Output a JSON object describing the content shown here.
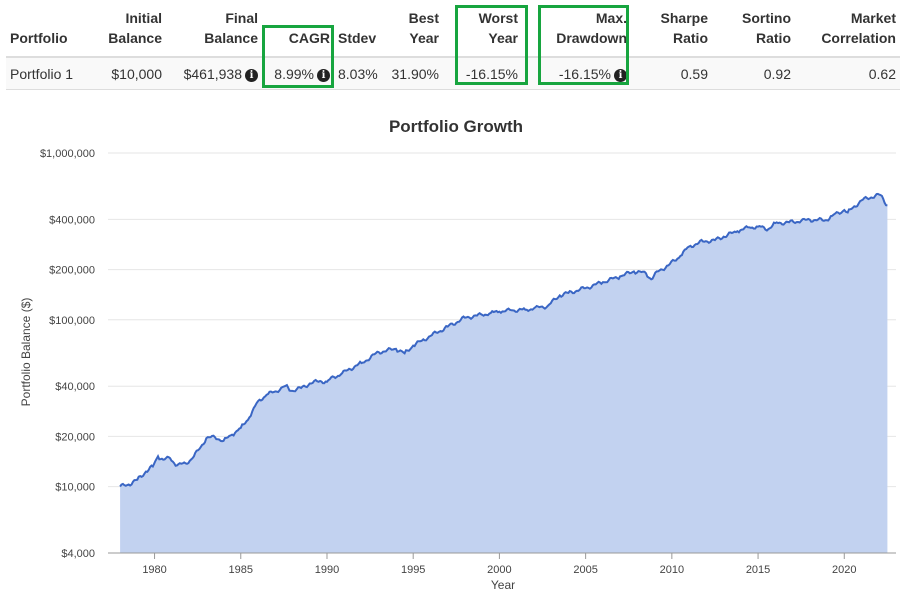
{
  "table": {
    "headers": [
      {
        "l1": "",
        "l2": "Portfolio"
      },
      {
        "l1": "Initial",
        "l2": "Balance"
      },
      {
        "l1": "Final",
        "l2": "Balance"
      },
      {
        "l1": "",
        "l2": "CAGR"
      },
      {
        "l1": "",
        "l2": "Stdev"
      },
      {
        "l1": "Best",
        "l2": "Year"
      },
      {
        "l1": "Worst",
        "l2": "Year"
      },
      {
        "l1": "Max.",
        "l2": "Drawdown"
      },
      {
        "l1": "Sharpe",
        "l2": "Ratio"
      },
      {
        "l1": "Sortino",
        "l2": "Ratio"
      },
      {
        "l1": "Market",
        "l2": "Correlation"
      }
    ],
    "row": {
      "portfolio": "Portfolio 1",
      "initial_balance": "$10,000",
      "final_balance": "$461,938",
      "cagr": "8.99%",
      "stdev": "8.03%",
      "best_year": "31.90%",
      "worst_year": "-16.15%",
      "max_drawdown": "-16.15%",
      "sharpe": "0.59",
      "sortino": "0.92",
      "market_correlation": "0.62"
    },
    "info_glyph": "i",
    "highlight_color": "#17a53f"
  },
  "chart_data": {
    "type": "area",
    "title": "Portfolio Growth",
    "xlabel": "Year",
    "ylabel": "Portfolio Balance ($)",
    "yscale": "log",
    "ylim": [
      4000,
      1000000
    ],
    "xlim": [
      1977.3,
      2023.0
    ],
    "y_ticks": [
      {
        "value": 1000000,
        "label": "$1,000,000"
      },
      {
        "value": 400000,
        "label": "$400,000"
      },
      {
        "value": 200000,
        "label": "$200,000"
      },
      {
        "value": 100000,
        "label": "$100,000"
      },
      {
        "value": 40000,
        "label": "$40,000"
      },
      {
        "value": 20000,
        "label": "$20,000"
      },
      {
        "value": 10000,
        "label": "$10,000"
      },
      {
        "value": 4000,
        "label": "$4,000"
      }
    ],
    "x_ticks": [
      1980,
      1985,
      1990,
      1995,
      2000,
      2005,
      2010,
      2015,
      2020
    ],
    "line_color": "#3a66c4",
    "fill_color": "#c2d2f0",
    "grid": true,
    "series": [
      {
        "name": "Portfolio 1",
        "x": [
          1978.0,
          1978.5,
          1979.0,
          1979.5,
          1979.9,
          1980.2,
          1980.5,
          1980.9,
          1981.3,
          1981.8,
          1982.2,
          1982.6,
          1983.0,
          1983.5,
          1984.0,
          1984.5,
          1985.0,
          1985.5,
          1986.0,
          1986.5,
          1987.0,
          1987.6,
          1987.9,
          1988.5,
          1989.0,
          1989.6,
          1990.0,
          1990.4,
          1990.8,
          1991.2,
          1992.0,
          1993.0,
          1994.0,
          1994.5,
          1995.0,
          1995.5,
          1996.0,
          1997.0,
          1998.0,
          1998.7,
          1999.0,
          1999.5,
          2000.0,
          2000.7,
          2001.5,
          2002.0,
          2002.8,
          2003.5,
          2004.0,
          2005.0,
          2006.0,
          2007.0,
          2007.8,
          2008.5,
          2008.8,
          2009.2,
          2009.8,
          2010.5,
          2011.0,
          2011.8,
          2012.5,
          2013.0,
          2013.8,
          2014.5,
          2015.0,
          2015.6,
          2016.0,
          2016.8,
          2017.5,
          2018.0,
          2018.9,
          2019.3,
          2020.0,
          2020.2,
          2020.5,
          2021.0,
          2021.8,
          2022.1,
          2022.5
        ],
        "y": [
          10000,
          10300,
          11000,
          12300,
          13200,
          15200,
          14500,
          14800,
          13400,
          13800,
          14800,
          16800,
          19500,
          19800,
          18800,
          20500,
          22500,
          26000,
          32500,
          35500,
          37200,
          40200,
          37500,
          39000,
          41500,
          43000,
          42500,
          45500,
          47000,
          50000,
          55000,
          64000,
          67000,
          63000,
          70000,
          75000,
          80000,
          91000,
          103000,
          106000,
          107000,
          110000,
          112000,
          114000,
          115000,
          117000,
          121000,
          140000,
          145000,
          155000,
          168000,
          182000,
          195000,
          190000,
          175000,
          195000,
          212000,
          242000,
          275000,
          295000,
          300000,
          315000,
          340000,
          358000,
          362000,
          350000,
          380000,
          384000,
          392000,
          398000,
          395000,
          420000,
          455000,
          440000,
          470000,
          520000,
          555000,
          560000,
          485000
        ]
      }
    ]
  }
}
